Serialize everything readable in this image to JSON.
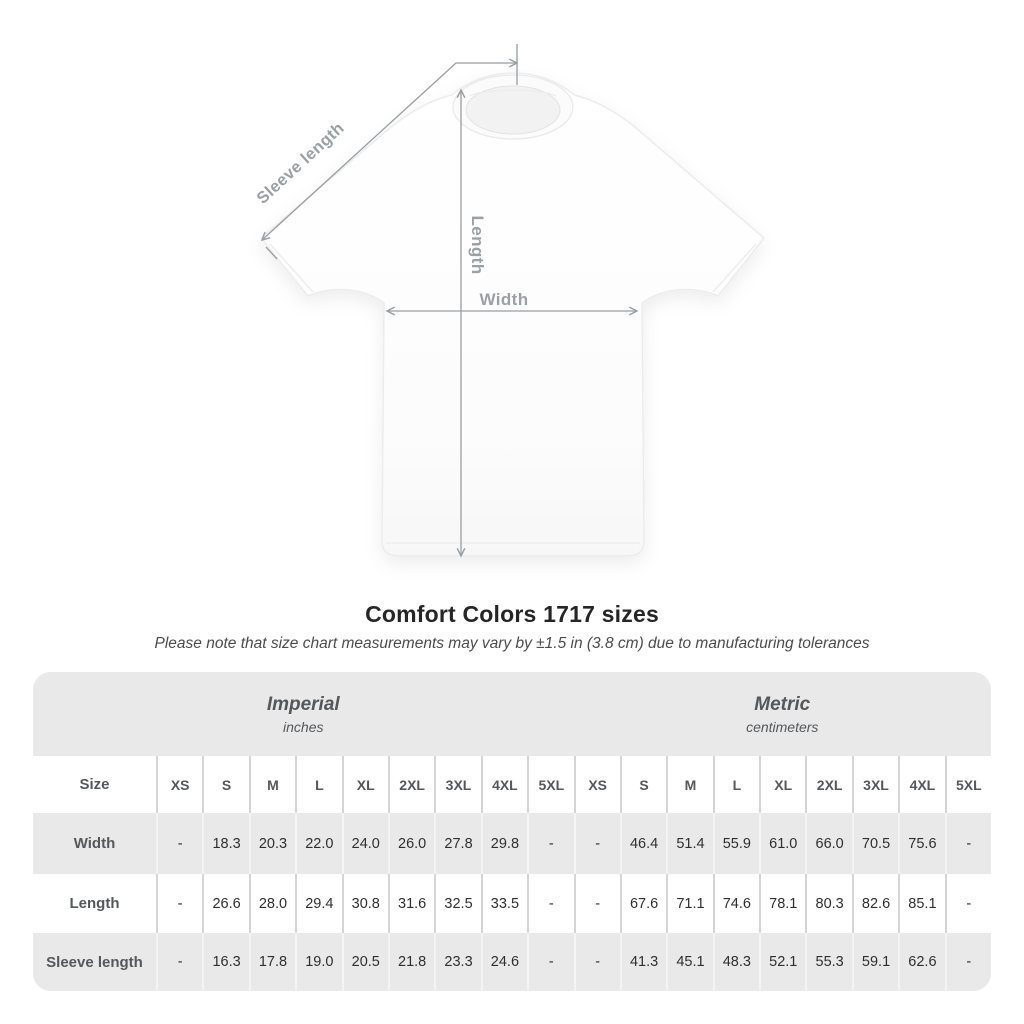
{
  "diagram": {
    "labels": {
      "sleeve_length": "Sleeve length",
      "length": "Length",
      "width": "Width"
    }
  },
  "header": {
    "title": "Comfort Colors 1717 sizes",
    "subtitle": "Please note that size chart measurements may vary by ±1.5 in (3.8 cm) due to manufacturing tolerances"
  },
  "chart_data": {
    "type": "table",
    "title": "Comfort Colors 1717 sizes",
    "size_column_header": "Size",
    "groups": [
      {
        "label": "Imperial",
        "unit": "inches"
      },
      {
        "label": "Metric",
        "unit": "centimeters"
      }
    ],
    "sizes": [
      "XS",
      "S",
      "M",
      "L",
      "XL",
      "2XL",
      "3XL",
      "4XL",
      "5XL"
    ],
    "rows": [
      {
        "label": "Width",
        "imperial": [
          "-",
          "18.3",
          "20.3",
          "22.0",
          "24.0",
          "26.0",
          "27.8",
          "29.8",
          "-"
        ],
        "metric": [
          "-",
          "46.4",
          "51.4",
          "55.9",
          "61.0",
          "66.0",
          "70.5",
          "75.6",
          "-"
        ]
      },
      {
        "label": "Length",
        "imperial": [
          "-",
          "26.6",
          "28.0",
          "29.4",
          "30.8",
          "31.6",
          "32.5",
          "33.5",
          "-"
        ],
        "metric": [
          "-",
          "67.6",
          "71.1",
          "74.6",
          "78.1",
          "80.3",
          "82.6",
          "85.1",
          "-"
        ]
      },
      {
        "label": "Sleeve length",
        "imperial": [
          "-",
          "16.3",
          "17.8",
          "19.0",
          "20.5",
          "21.8",
          "23.3",
          "24.6",
          "-"
        ],
        "metric": [
          "-",
          "41.3",
          "45.1",
          "48.3",
          "52.1",
          "55.3",
          "59.1",
          "62.6",
          "-"
        ]
      }
    ]
  },
  "colors": {
    "table_band_gray": "#e9e9e9",
    "separator_on_white": "#d5d5d5",
    "separator_on_gray": "#f4f4f4",
    "heading_text": "#54585b",
    "value_text": "#2f2f2f",
    "arrow_gray": "#989ea2",
    "measure_label_gray": "#9aa0a3",
    "title_text": "#262626",
    "subtitle_text": "#4c4c4c"
  }
}
